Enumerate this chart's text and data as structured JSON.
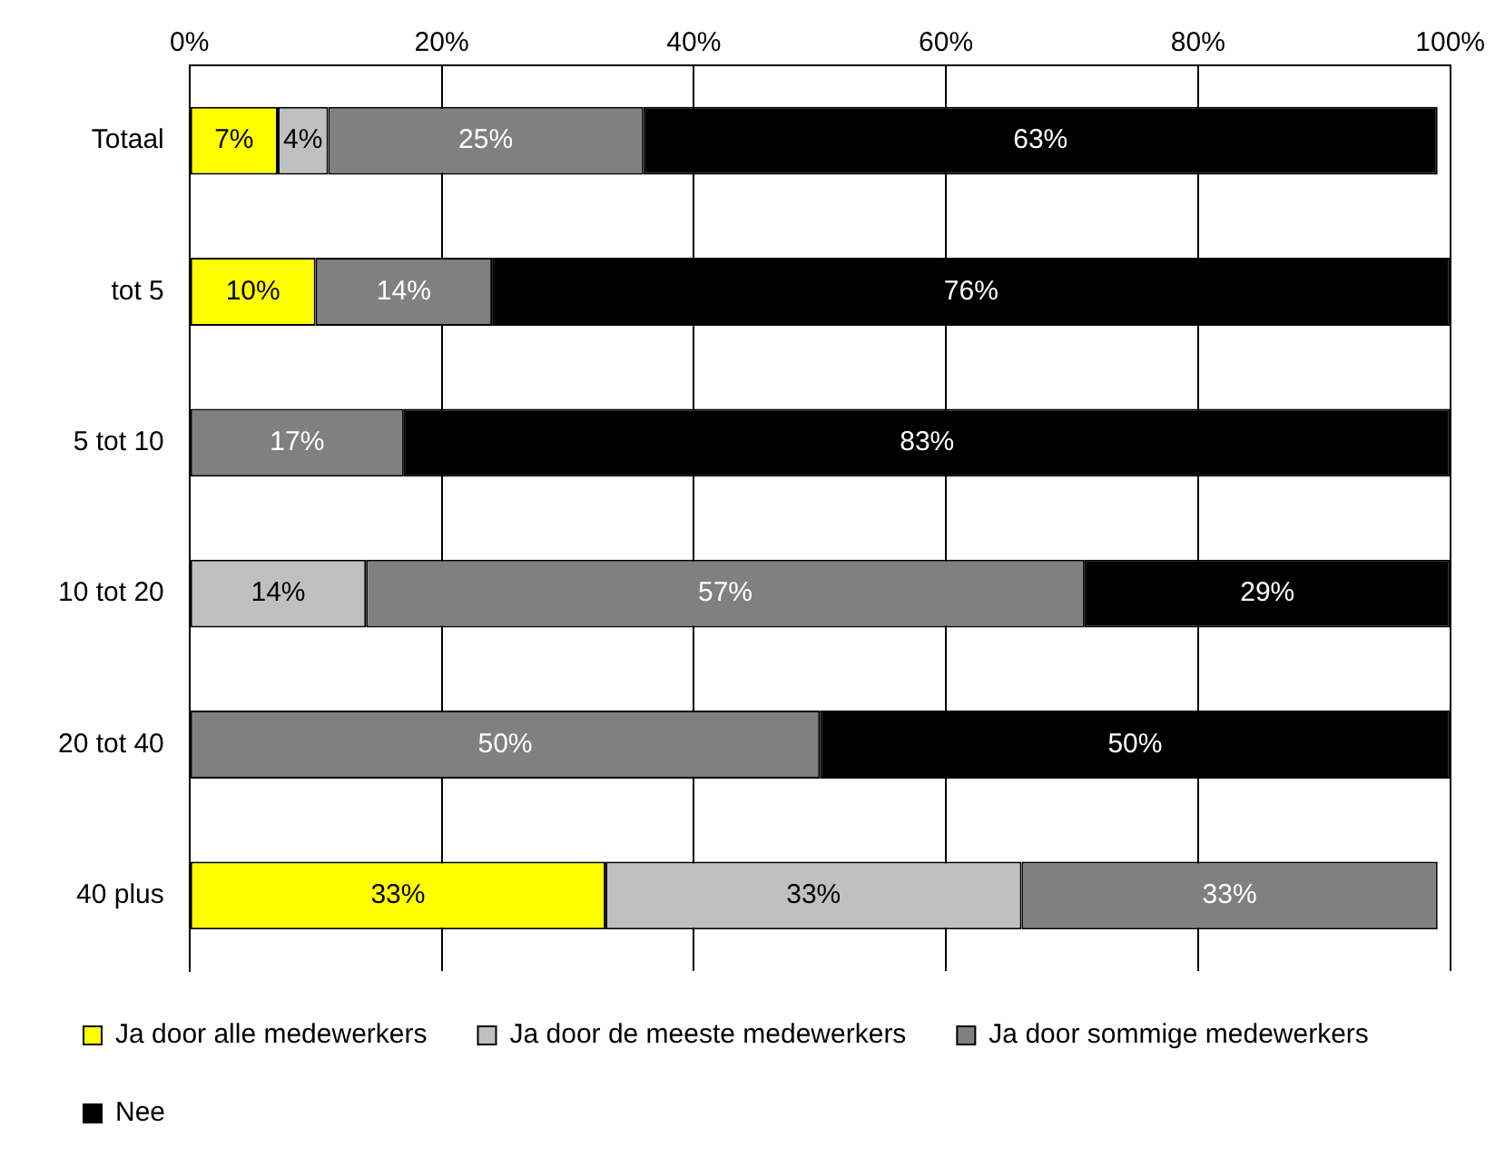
{
  "chart_data": {
    "type": "bar",
    "orientation": "horizontal",
    "stacked": true,
    "categories": [
      "Totaal",
      "tot 5",
      "5 tot 10",
      "10 tot 20",
      "20 tot 40",
      "40 plus"
    ],
    "series": [
      {
        "name": "Ja door alle medewerkers",
        "color": "#ffff00",
        "values": [
          7,
          10,
          null,
          null,
          null,
          33
        ],
        "value_labels": [
          "7%",
          "10%",
          null,
          null,
          null,
          "33%"
        ]
      },
      {
        "name": "Ja door de meeste medewerkers",
        "color": "#c0c0c0",
        "values": [
          4,
          null,
          null,
          14,
          null,
          33
        ],
        "value_labels": [
          "4%",
          null,
          null,
          "14%",
          null,
          "33%"
        ]
      },
      {
        "name": "Ja door sommige medewerkers",
        "color": "#808080",
        "values": [
          25,
          14,
          17,
          57,
          50,
          33
        ],
        "value_labels": [
          "25%",
          "14%",
          "17%",
          "57%",
          "50%",
          "33%"
        ]
      },
      {
        "name": "Nee",
        "color": "#000000",
        "values": [
          63,
          76,
          83,
          29,
          50,
          null
        ],
        "value_labels": [
          "63%",
          "76%",
          "83%",
          "29%",
          "50%",
          null
        ]
      }
    ],
    "xlim": [
      0,
      100
    ],
    "xticks": [
      {
        "value": 0,
        "label": "0%"
      },
      {
        "value": 20,
        "label": "20%"
      },
      {
        "value": 40,
        "label": "40%"
      },
      {
        "value": 60,
        "label": "60%"
      },
      {
        "value": 80,
        "label": "80%"
      },
      {
        "value": 100,
        "label": "100%"
      }
    ],
    "grid": "x",
    "legend": "bottom"
  }
}
